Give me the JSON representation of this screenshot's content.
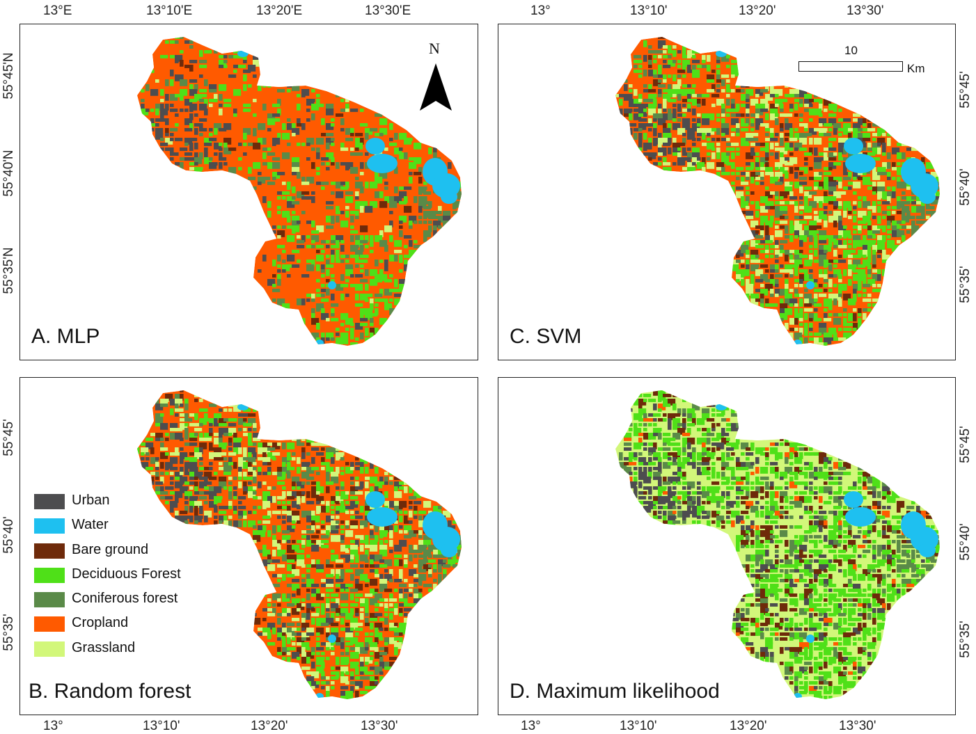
{
  "panels": [
    {
      "id": "A",
      "title": "A. MLP",
      "mix": {
        "cropland": 0.66,
        "deciduous": 0.12,
        "conifer": 0.09,
        "urban": 0.07,
        "bare": 0.02,
        "grassland": 0.02,
        "water": 0.02
      }
    },
    {
      "id": "B",
      "title": "B. Random forest",
      "mix": {
        "cropland": 0.38,
        "deciduous": 0.17,
        "conifer": 0.11,
        "urban": 0.1,
        "bare": 0.08,
        "grassland": 0.14,
        "water": 0.02
      }
    },
    {
      "id": "C",
      "title": "C. SVM",
      "mix": {
        "cropland": 0.34,
        "deciduous": 0.24,
        "conifer": 0.1,
        "urban": 0.08,
        "bare": 0.06,
        "grassland": 0.16,
        "water": 0.02
      }
    },
    {
      "id": "D",
      "title": "D. Maximum likelihood",
      "mix": {
        "cropland": 0.04,
        "deciduous": 0.3,
        "conifer": 0.1,
        "urban": 0.09,
        "bare": 0.12,
        "grassland": 0.33,
        "water": 0.02
      }
    }
  ],
  "ticks": {
    "a_top": [
      "13°E",
      "13°10'E",
      "13°20'E",
      "13°30'E"
    ],
    "a_left": [
      "55°45'N",
      "55°40'N",
      "55°35'N"
    ],
    "c_top": [
      "13°",
      "13°10'",
      "13°20'",
      "13°30'"
    ],
    "c_right": [
      "55°45'",
      "55°40'",
      "55°35'"
    ],
    "b_left": [
      "55°45'",
      "55°40'",
      "55°35'"
    ],
    "d_right": [
      "55°45'",
      "55°40'",
      "55°35'"
    ],
    "b_bottom": [
      "13°",
      "13°10'",
      "13°20'",
      "13°30'"
    ],
    "d_bottom": [
      "13°",
      "13°10'",
      "13°20'",
      "13°30'"
    ]
  },
  "north_label": "N",
  "scale": {
    "value": "10",
    "unit": "Km"
  },
  "legend": [
    {
      "label": "Urban",
      "color": "#4d4d4f"
    },
    {
      "label": "Water",
      "color": "#1ec0f0"
    },
    {
      "label": "Bare ground",
      "color": "#6e2a0a"
    },
    {
      "label": "Deciduous Forest",
      "color": "#4fe018"
    },
    {
      "label": "Coniferous forest",
      "color": "#5a8a48"
    },
    {
      "label": "Cropland",
      "color": "#ff5a00"
    },
    {
      "label": "Grassland",
      "color": "#d2f77a"
    }
  ],
  "colors": {
    "urban": "#4d4d4f",
    "water": "#1ec0f0",
    "bare": "#6e2a0a",
    "deciduous": "#4fe018",
    "conifer": "#5a8a48",
    "cropland": "#ff5a00",
    "grassland": "#d2f77a"
  }
}
